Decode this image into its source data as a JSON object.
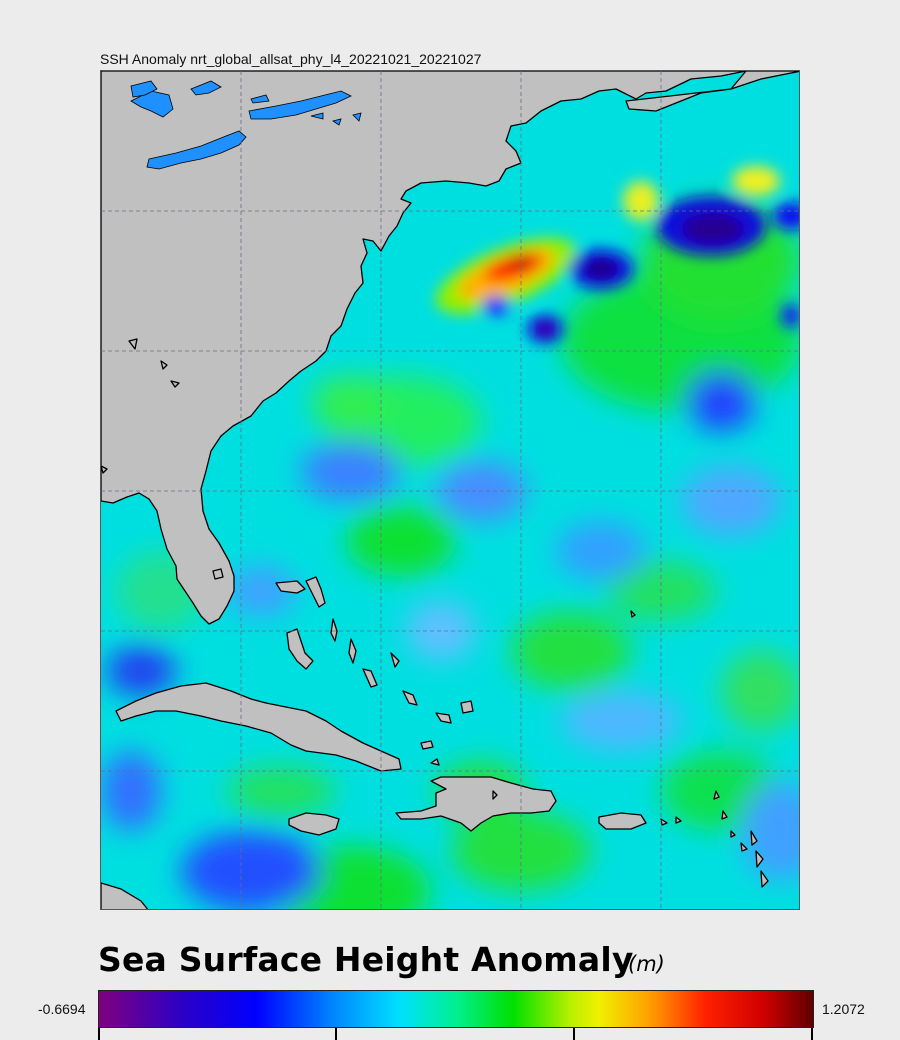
{
  "map": {
    "title": "SSH Anomaly nrt_global_allsat_phy_l4_20221021_20221027",
    "land_color": "#c0c0c0",
    "lake_color": "#1e90ff",
    "grid_color": "#6a6a8a"
  },
  "legend": {
    "title": "Sea Surface Height Anomaly",
    "units": "(m)",
    "min": "-0.6694",
    "max": "1.2072"
  }
}
